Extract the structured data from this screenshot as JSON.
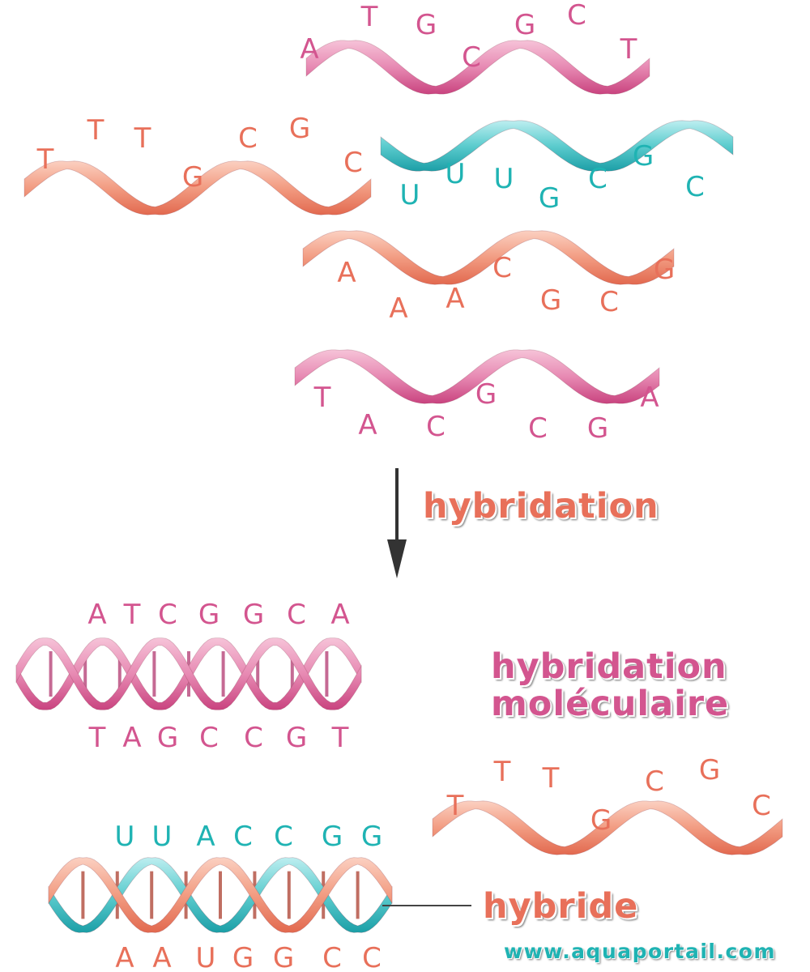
{
  "colors": {
    "pink": "#d3558f",
    "salmon": "#e8705a",
    "teal": "#1fb3b3",
    "arrow": "#333333"
  },
  "strands": [
    {
      "id": "top-pink-strand",
      "color": "pink",
      "letters": [
        "A",
        "T",
        "G",
        "C",
        "G",
        "C",
        "T"
      ]
    },
    {
      "id": "salmon-strand",
      "color": "salmon",
      "letters": [
        "T",
        "T",
        "T",
        "G",
        "C",
        "G",
        "C"
      ]
    },
    {
      "id": "teal-rna-strand",
      "color": "teal",
      "letters": [
        "U",
        "U",
        "U",
        "G",
        "C",
        "G",
        "C"
      ]
    },
    {
      "id": "middle-salmon-strand",
      "color": "salmon",
      "letters": [
        "A",
        "A",
        "A",
        "C",
        "G",
        "C",
        "G"
      ]
    },
    {
      "id": "middle-pink-strand",
      "color": "pink",
      "letters": [
        "T",
        "A",
        "C",
        "G",
        "C",
        "G",
        "A"
      ]
    },
    {
      "id": "unpaired-salmon-strand",
      "color": "salmon",
      "letters": [
        "T",
        "T",
        "T",
        "G",
        "C",
        "G",
        "C"
      ]
    }
  ],
  "duplexes": [
    {
      "id": "dna-duplex",
      "top_letters": [
        "A",
        "T",
        "C",
        "G",
        "G",
        "C",
        "A"
      ],
      "bottom_letters": [
        "T",
        "A",
        "G",
        "C",
        "C",
        "G",
        "T"
      ]
    },
    {
      "id": "hybrid-duplex",
      "top_letters": [
        "U",
        "U",
        "A",
        "C",
        "C",
        "G",
        "G"
      ],
      "bottom_letters": [
        "A",
        "A",
        "U",
        "G",
        "G",
        "C",
        "C"
      ]
    }
  ],
  "labels": {
    "process": "hybridation",
    "molecular_line1": "hybridation",
    "molecular_line2": "moléculaire",
    "hybrid": "hybride",
    "website": "www.aquaportail.com"
  }
}
